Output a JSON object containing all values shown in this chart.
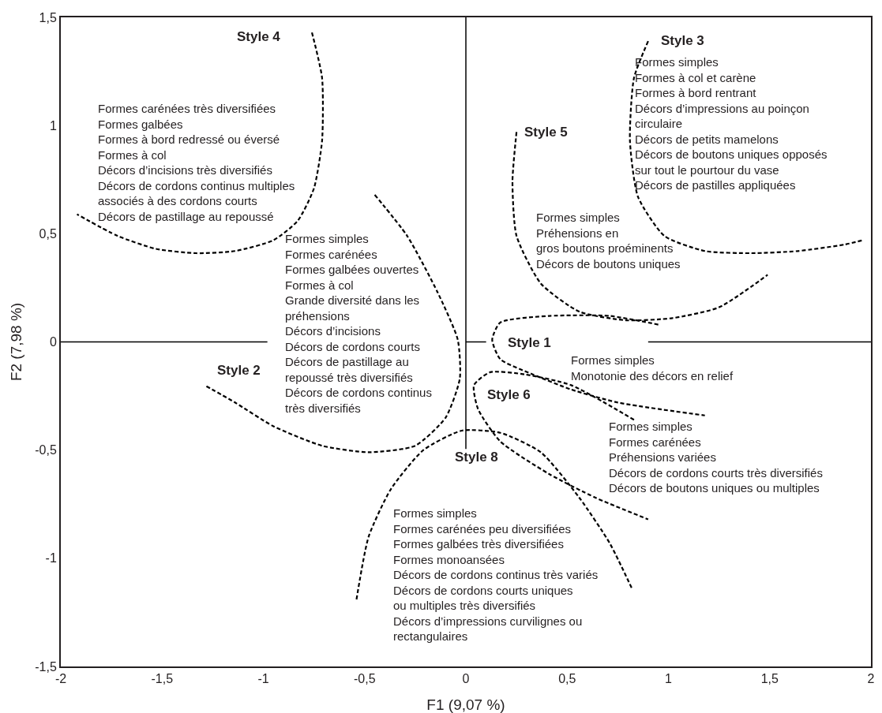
{
  "chart_data": {
    "type": "line",
    "xlabel": "F1 (9,07 %)",
    "ylabel": "F2 (7,98 %)",
    "xlim": [
      -2,
      2
    ],
    "ylim": [
      -1.5,
      1.5
    ],
    "xticks": [
      -2,
      {
        "value": -1.5,
        "label": "-1,5"
      },
      -1,
      {
        "value": -0.5,
        "label": "-0,5"
      },
      0,
      {
        "value": 0.5,
        "label": "0,5"
      },
      1,
      {
        "value": 1.5,
        "label": "1,5"
      },
      2
    ],
    "yticks": [
      {
        "value": -1.5,
        "label": "-1,5"
      },
      -1,
      {
        "value": -0.5,
        "label": "-0,5"
      },
      0,
      {
        "value": 0.5,
        "label": "0,5"
      },
      1,
      {
        "value": 1.5,
        "label": "1,5"
      }
    ],
    "marker": "none",
    "line_style": "dashed",
    "ref_lines": [
      {
        "axis": "x",
        "value": 0,
        "color": "#000000",
        "line_style": "solid"
      },
      {
        "axis": "y",
        "value": 0,
        "color": "#000000",
        "line_style": "solid"
      }
    ],
    "series": [
      {
        "color": "#000000",
        "x": [
          -0.76,
          -0.71,
          -0.71,
          -0.75,
          -0.83,
          -0.95,
          -1.14,
          -1.33,
          -1.53,
          -1.72,
          -1.92
        ],
        "values": [
          1.43,
          1.22,
          0.93,
          0.71,
          0.56,
          0.47,
          0.42,
          0.41,
          0.43,
          0.49,
          0.59
        ]
      },
      {
        "color": "#000000",
        "x": [
          -0.45,
          -0.29,
          -0.14,
          -0.04,
          -0.03,
          -0.1,
          -0.25,
          -0.48,
          -0.71,
          -0.95,
          -1.14,
          -1.29
        ],
        "values": [
          0.68,
          0.49,
          0.23,
          0.01,
          -0.17,
          -0.35,
          -0.48,
          -0.51,
          -0.48,
          -0.39,
          -0.28,
          -0.2
        ]
      },
      {
        "color": "#000000",
        "x": [
          0.9,
          0.83,
          0.81,
          0.85,
          0.98,
          1.18,
          1.41,
          1.64,
          1.87,
          1.96
        ],
        "values": [
          1.39,
          1.22,
          0.93,
          0.67,
          0.49,
          0.42,
          0.41,
          0.42,
          0.45,
          0.47
        ]
      },
      {
        "color": "#000000",
        "x": [
          0.25,
          0.23,
          0.25,
          0.37,
          0.56,
          0.79,
          1.02,
          1.25,
          1.49
        ],
        "values": [
          0.97,
          0.74,
          0.49,
          0.27,
          0.14,
          0.1,
          0.11,
          0.16,
          0.31
        ]
      },
      {
        "color": "#000000",
        "x": [
          0.95,
          0.71,
          0.41,
          0.17,
          0.13,
          0.17,
          0.33,
          0.52,
          0.75,
          1.18
        ],
        "values": [
          0.08,
          0.12,
          0.12,
          0.09,
          0.01,
          -0.08,
          -0.15,
          -0.22,
          -0.28,
          -0.34
        ]
      },
      {
        "color": "#000000",
        "x": [
          0.83,
          0.52,
          0.29,
          0.12,
          0.04,
          0.06,
          0.17,
          0.41,
          0.64,
          0.9
        ],
        "values": [
          -0.36,
          -0.2,
          -0.15,
          -0.14,
          -0.2,
          -0.31,
          -0.46,
          -0.61,
          -0.72,
          -0.82
        ]
      },
      {
        "color": "#000000",
        "x": [
          -0.54,
          -0.48,
          -0.37,
          -0.21,
          -0.02,
          0.17,
          0.37,
          0.56,
          0.71,
          0.82
        ],
        "values": [
          -1.19,
          -0.9,
          -0.68,
          -0.5,
          -0.41,
          -0.42,
          -0.51,
          -0.72,
          -0.93,
          -1.14
        ]
      }
    ],
    "annotations": [
      "Style 4",
      "Formes carénées très diversifiées\nFormes galbées\nFormes à bord redressé ou éversé\nFormes à col\nDécors d’incisions très diversifiés\nDécors de cordons continus multiples\nassociés à des cordons courts\nDécors de pastillage au repoussé",
      "Formes simples\nFormes carénées\nFormes galbées ouvertes\nFormes à col\nGrande diversité dans les\npréhensions\nDécors d’incisions\nDécors de cordons courts\nDécors de pastillage au\nrepoussé très diversifiés\nDécors de cordons continus\ntrès diversifiés",
      "Style 2",
      "Style 3",
      "Formes simples\nFormes à col et carène\nFormes à bord rentrant\nDécors d’impressions au poinçon\ncirculaire\nDécors de petits mamelons\nDécors de boutons uniques opposés\nsur tout le pourtour du vase\nDécors de pastilles appliquées",
      "Style 5",
      "Formes simples\nPréhensions en\ngros boutons proéminents\nDécors de boutons uniques",
      "Style 1",
      "Formes simples\nMonotonie des décors en relief",
      "Style 6",
      "Formes simples\nFormes carénées\nPréhensions variées\nDécors de cordons courts très diversifiés\nDécors de boutons uniques ou multiples",
      "Style 8",
      "Formes simples\nFormes carénées peu diversifiées\nFormes galbées très diversifiées\nFormes monoansées\nDécors de cordons continus très variés\nDécors de cordons courts uniques\nou multiples très diversifiés\nDécors d’impressions curvilignes ou\nrectangulaires"
    ]
  }
}
